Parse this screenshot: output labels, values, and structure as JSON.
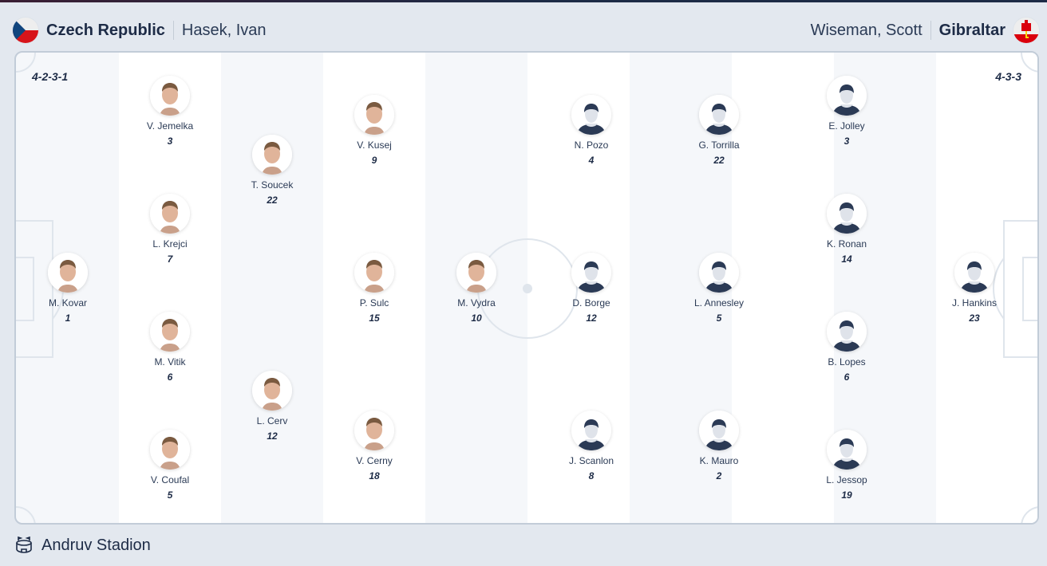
{
  "home": {
    "team": "Czech Republic",
    "coach": "Hasek, Ivan",
    "formation": "4-2-3-1",
    "flag_icon": "czech-flag-icon",
    "players": [
      {
        "name": "M. Kovar",
        "number": "1"
      },
      {
        "name": "V. Jemelka",
        "number": "3"
      },
      {
        "name": "L. Krejci",
        "number": "7"
      },
      {
        "name": "M. Vitik",
        "number": "6"
      },
      {
        "name": "V. Coufal",
        "number": "5"
      },
      {
        "name": "T. Soucek",
        "number": "22"
      },
      {
        "name": "L. Cerv",
        "number": "12"
      },
      {
        "name": "V. Kusej",
        "number": "9"
      },
      {
        "name": "P. Sulc",
        "number": "15"
      },
      {
        "name": "V. Cerny",
        "number": "18"
      },
      {
        "name": "M. Vydra",
        "number": "10"
      }
    ]
  },
  "away": {
    "team": "Gibraltar",
    "coach": "Wiseman, Scott",
    "formation": "4-3-3",
    "flag_icon": "gibraltar-flag-icon",
    "players": [
      {
        "name": "N. Pozo",
        "number": "4"
      },
      {
        "name": "D. Borge",
        "number": "12"
      },
      {
        "name": "J. Scanlon",
        "number": "8"
      },
      {
        "name": "G. Torrilla",
        "number": "22"
      },
      {
        "name": "L. Annesley",
        "number": "5"
      },
      {
        "name": "K. Mauro",
        "number": "2"
      },
      {
        "name": "E. Jolley",
        "number": "3"
      },
      {
        "name": "K. Ronan",
        "number": "14"
      },
      {
        "name": "B. Lopes",
        "number": "6"
      },
      {
        "name": "L. Jessop",
        "number": "19"
      },
      {
        "name": "J. Hankins",
        "number": "23"
      }
    ]
  },
  "venue": {
    "name": "Andruv Stadion",
    "icon": "stadium-icon"
  },
  "colors": {
    "text": "#1d2b46",
    "pitch_light": "#f5f7fa",
    "line": "#dfe5ec",
    "silhouette": "#2b3a55"
  }
}
